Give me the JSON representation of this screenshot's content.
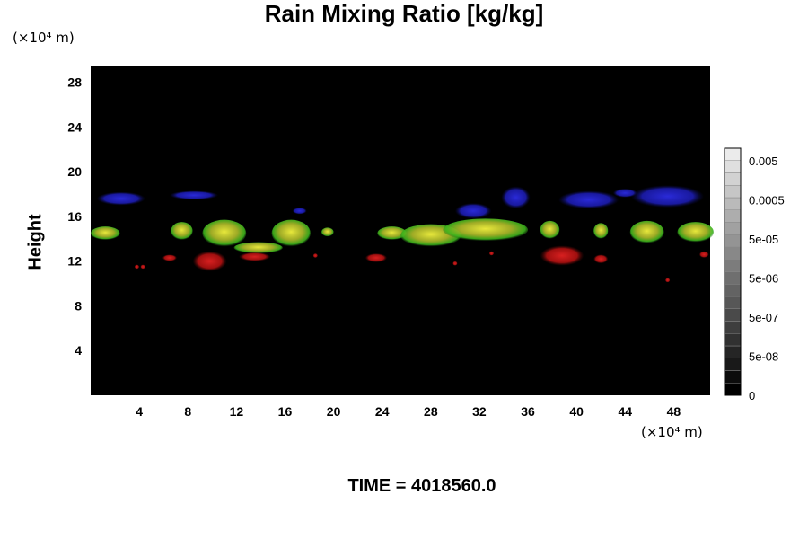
{
  "title": "Rain Mixing Ratio [kg/kg]",
  "y_unit": "(×10⁴ m)",
  "x_unit": "(×10⁴ m)",
  "time_label": "TIME = 4018560.0",
  "colors": {
    "background": "#000000",
    "red": "#b81818",
    "yellow": "#c8c81e",
    "green": "#3ca81c",
    "blue": "#2020c8"
  },
  "chart_data": {
    "type": "heatmap",
    "title": "Rain Mixing Ratio [kg/kg]",
    "xlabel": "",
    "ylabel": "Height",
    "x_unit": "(×10⁴ m)",
    "y_unit": "(×10⁴ m)",
    "xlim": [
      0,
      51
    ],
    "ylim": [
      0,
      29.5
    ],
    "xticks": [
      4,
      8,
      12,
      16,
      20,
      24,
      28,
      32,
      36,
      40,
      44,
      48
    ],
    "yticks": [
      4,
      8,
      12,
      16,
      20,
      24,
      28
    ],
    "colorbar": {
      "tick_labels": [
        "0.005",
        "0.0005",
        "5e-05",
        "5e-06",
        "5e-07",
        "5e-08",
        "0"
      ],
      "levels": 20
    },
    "features": [
      {
        "kind": "blue",
        "x": 2.5,
        "y": 17.6,
        "rx": 2.0,
        "ry": 0.6
      },
      {
        "kind": "blue",
        "x": 8.5,
        "y": 17.9,
        "rx": 2.0,
        "ry": 0.4
      },
      {
        "kind": "blue",
        "x": 17.2,
        "y": 16.5,
        "rx": 0.6,
        "ry": 0.3
      },
      {
        "kind": "blue",
        "x": 31.5,
        "y": 16.5,
        "rx": 1.5,
        "ry": 0.7
      },
      {
        "kind": "blue",
        "x": 35.0,
        "y": 17.7,
        "rx": 1.2,
        "ry": 1.0
      },
      {
        "kind": "blue",
        "x": 41.0,
        "y": 17.5,
        "rx": 2.5,
        "ry": 0.8
      },
      {
        "kind": "blue",
        "x": 47.5,
        "y": 17.8,
        "rx": 3.0,
        "ry": 1.0
      },
      {
        "kind": "blue",
        "x": 44.0,
        "y": 18.1,
        "rx": 1.0,
        "ry": 0.4
      },
      {
        "kind": "yellow",
        "x": 1.2,
        "y": 14.5,
        "rx": 1.2,
        "ry": 0.6
      },
      {
        "kind": "yellow",
        "x": 7.5,
        "y": 14.7,
        "rx": 0.9,
        "ry": 0.8
      },
      {
        "kind": "yellow",
        "x": 11.0,
        "y": 14.5,
        "rx": 1.8,
        "ry": 1.2
      },
      {
        "kind": "yellow",
        "x": 13.8,
        "y": 13.2,
        "rx": 2.0,
        "ry": 0.5
      },
      {
        "kind": "yellow",
        "x": 16.5,
        "y": 14.5,
        "rx": 1.6,
        "ry": 1.2
      },
      {
        "kind": "yellow",
        "x": 19.5,
        "y": 14.6,
        "rx": 0.5,
        "ry": 0.4
      },
      {
        "kind": "yellow",
        "x": 24.8,
        "y": 14.5,
        "rx": 1.2,
        "ry": 0.6
      },
      {
        "kind": "yellow",
        "x": 28.0,
        "y": 14.3,
        "rx": 2.5,
        "ry": 1.0
      },
      {
        "kind": "yellow",
        "x": 32.5,
        "y": 14.8,
        "rx": 3.5,
        "ry": 1.0
      },
      {
        "kind": "yellow",
        "x": 37.8,
        "y": 14.8,
        "rx": 0.8,
        "ry": 0.8
      },
      {
        "kind": "yellow",
        "x": 42.0,
        "y": 14.7,
        "rx": 0.6,
        "ry": 0.7
      },
      {
        "kind": "yellow",
        "x": 45.8,
        "y": 14.6,
        "rx": 1.4,
        "ry": 1.0
      },
      {
        "kind": "yellow",
        "x": 49.8,
        "y": 14.6,
        "rx": 1.5,
        "ry": 0.9
      },
      {
        "kind": "red",
        "x": 9.8,
        "y": 12.0,
        "rx": 1.4,
        "ry": 0.9
      },
      {
        "kind": "red",
        "x": 6.5,
        "y": 12.3,
        "rx": 0.6,
        "ry": 0.3
      },
      {
        "kind": "red",
        "x": 13.5,
        "y": 12.4,
        "rx": 1.3,
        "ry": 0.4
      },
      {
        "kind": "red",
        "x": 23.5,
        "y": 12.3,
        "rx": 0.9,
        "ry": 0.4
      },
      {
        "kind": "red",
        "x": 38.8,
        "y": 12.5,
        "rx": 1.8,
        "ry": 0.9
      },
      {
        "kind": "red",
        "x": 42.0,
        "y": 12.2,
        "rx": 0.6,
        "ry": 0.4
      },
      {
        "kind": "red",
        "x": 50.5,
        "y": 12.6,
        "rx": 0.4,
        "ry": 0.3
      },
      {
        "kind": "red",
        "x": 3.8,
        "y": 11.5,
        "rx": 0.2,
        "ry": 0.2
      },
      {
        "kind": "red",
        "x": 4.3,
        "y": 11.5,
        "rx": 0.2,
        "ry": 0.2
      },
      {
        "kind": "red",
        "x": 18.5,
        "y": 12.5,
        "rx": 0.2,
        "ry": 0.2
      },
      {
        "kind": "red",
        "x": 30.0,
        "y": 11.8,
        "rx": 0.2,
        "ry": 0.2
      },
      {
        "kind": "red",
        "x": 33.0,
        "y": 12.7,
        "rx": 0.2,
        "ry": 0.2
      },
      {
        "kind": "red",
        "x": 47.5,
        "y": 10.3,
        "rx": 0.2,
        "ry": 0.2
      }
    ]
  }
}
